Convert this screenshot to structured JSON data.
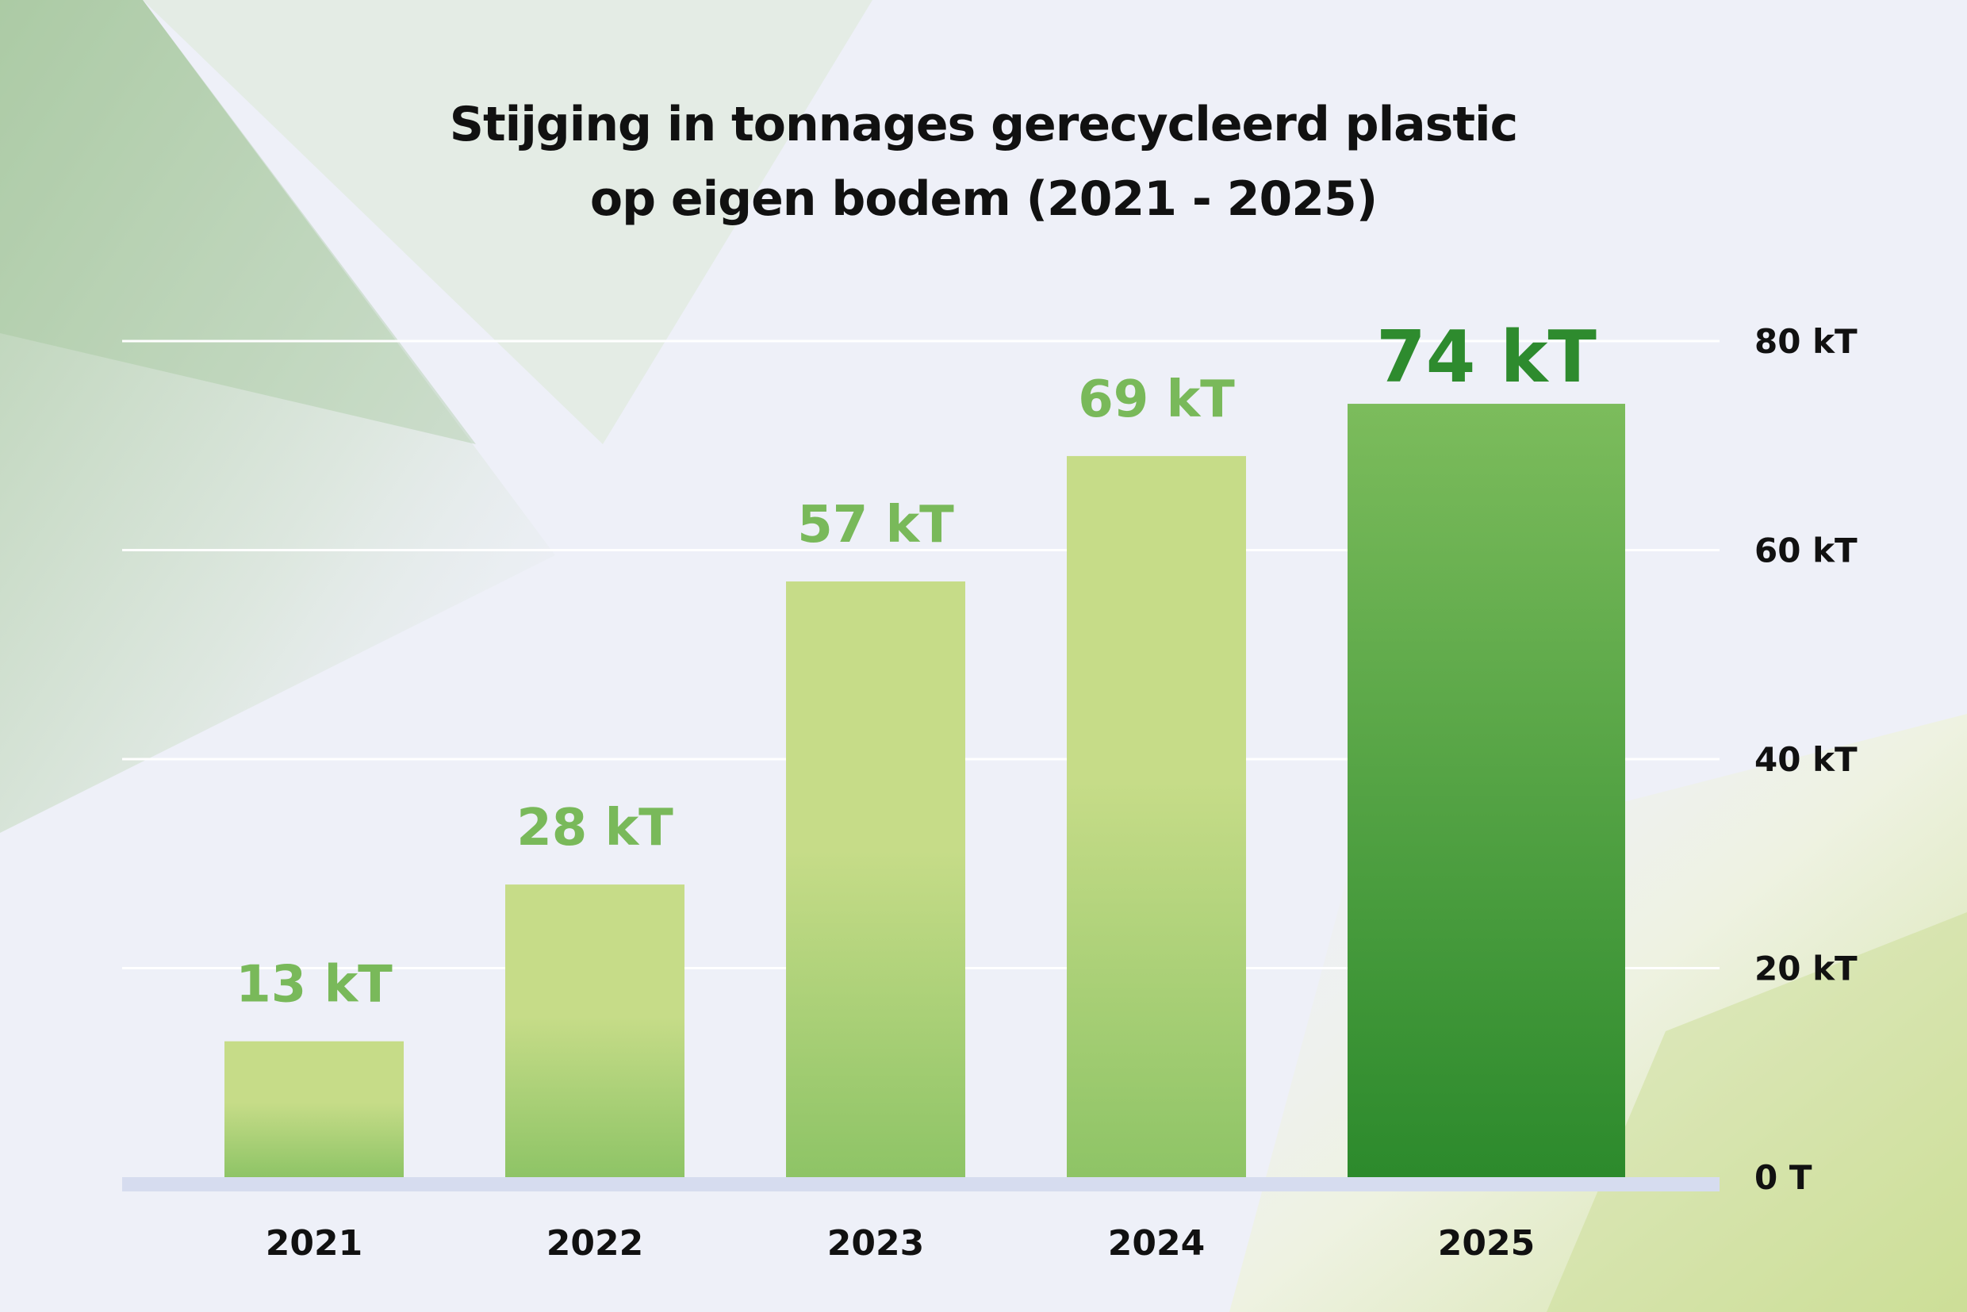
{
  "chart_data": {
    "type": "bar",
    "title_lines": [
      "Stijging in tonnages gerecycleerd plastic",
      "op eigen bodem (2021 - 2025)"
    ],
    "categories": [
      "2021",
      "2022",
      "2023",
      "2024",
      "2025"
    ],
    "values": [
      13,
      28,
      57,
      69,
      74
    ],
    "value_labels": [
      "13 kT",
      "28 kT",
      "57 kT",
      "69 kT",
      "74 kT"
    ],
    "highlight_index": 4,
    "unit": "kT",
    "ylim": [
      0,
      80
    ],
    "yticks": [
      0,
      20,
      40,
      60,
      80
    ],
    "ytick_labels": [
      "0 T",
      "20 kT",
      "40 kT",
      "60 kT",
      "80 kT"
    ],
    "y_axis_position": "right",
    "grid": true,
    "colors": {
      "bar_light_top": "#c6dc88",
      "bar_light_bottom": "#8ec466",
      "bar_highlight_top": "#7cbc5c",
      "bar_highlight_bottom": "#2c8a2c",
      "value_label": "#79b95a",
      "value_label_highlight": "#2e8b2e",
      "baseline": "#d6dcef",
      "gridline": "#ffffff"
    }
  }
}
